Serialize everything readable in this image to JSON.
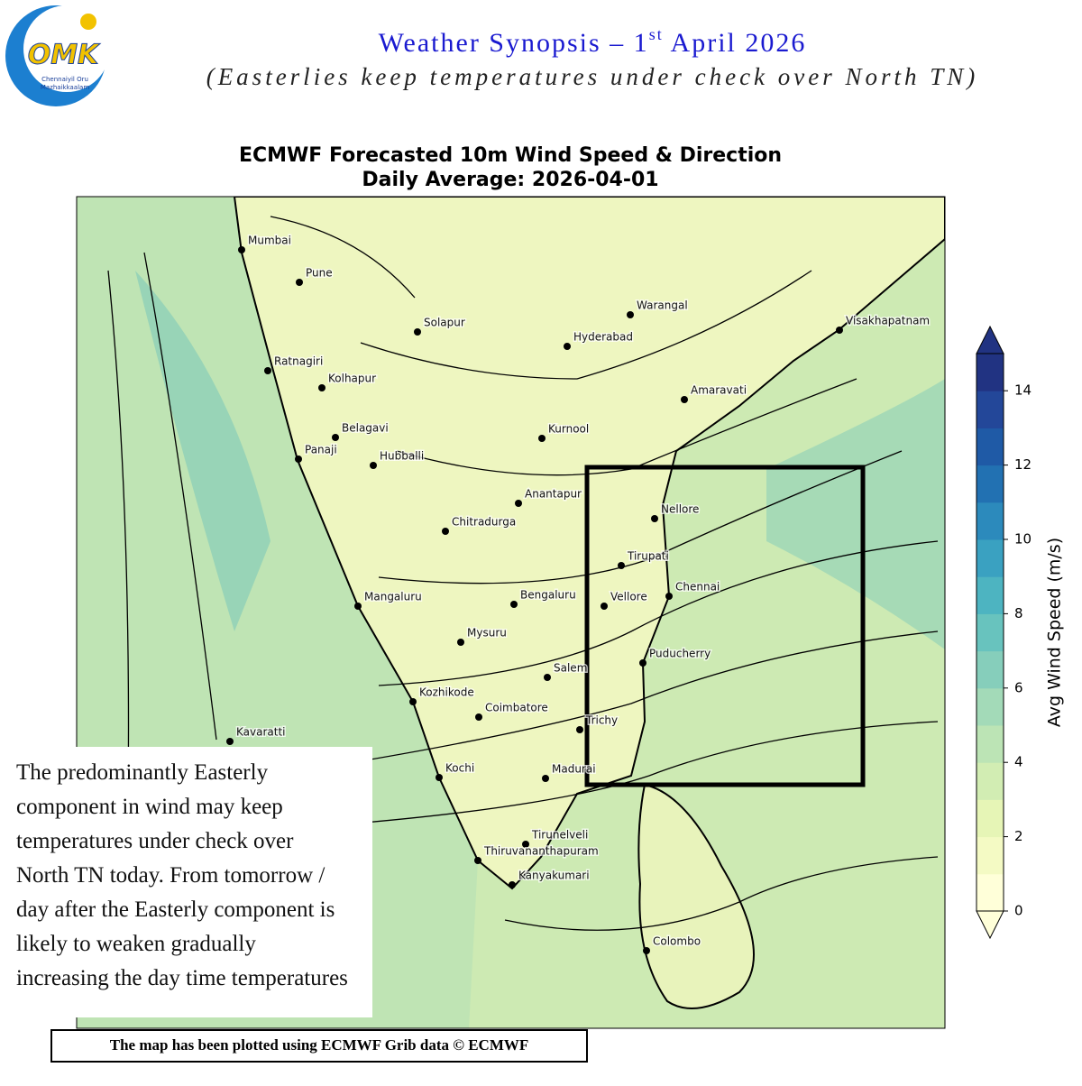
{
  "header": {
    "title": "Weather Synopsis – 1",
    "title_sup": "st",
    "title_end": " April 2026",
    "subtitle": "(Easterlies keep temperatures under check over North TN)",
    "logo": {
      "mark": "OMK",
      "line1": "Chennaiyil Oru",
      "line2": "Mazhaikkaalam"
    }
  },
  "map": {
    "title": "ECMWF Forecasted 10m Wind Speed & Direction",
    "subtitle": "Daily Average: 2026-04-01",
    "cities": [
      "Mumbai",
      "Pune",
      "Solapur",
      "Warangal",
      "Hyderabad",
      "Visakhapatnam",
      "Ratnagiri",
      "Kolhapur",
      "Amaravati",
      "Belagavi",
      "Kurnool",
      "Panaji",
      "Hubballi",
      "Anantapur",
      "Nellore",
      "Chitradurga",
      "Tirupati",
      "Chennai",
      "Bengaluru",
      "Vellore",
      "Mangaluru",
      "Mysuru",
      "Puducherry",
      "Salem",
      "Kozhikode",
      "Coimbatore",
      "Trichy",
      "Kavaratti",
      "Kochi",
      "Madurai",
      "Tirunelveli",
      "Thiruvananthapuram",
      "Kanyakumari",
      "Colombo"
    ],
    "colorbar": {
      "label": "Avg Wind Speed (m/s)",
      "lim": [
        0,
        15
      ],
      "ticks": [
        0,
        2,
        4,
        6,
        8,
        10,
        12,
        14
      ],
      "colors": [
        "#ffffd9",
        "#f4fac4",
        "#e6f5b6",
        "#d2edb3",
        "#bce4b5",
        "#a3dab8",
        "#86cebb",
        "#68c3be",
        "#4db4c1",
        "#3aa1c1",
        "#2c8abc",
        "#2271b2",
        "#1f5aa6",
        "#234799",
        "#213382"
      ]
    }
  },
  "note": "The predominantly Easterly component in wind may keep temperatures under check over North TN today. From tomorrow / day after the Easterly component is likely to weaken gradually increasing the day time temperatures",
  "footer": "The map has been plotted using ECMWF Grib data © ECMWF"
}
